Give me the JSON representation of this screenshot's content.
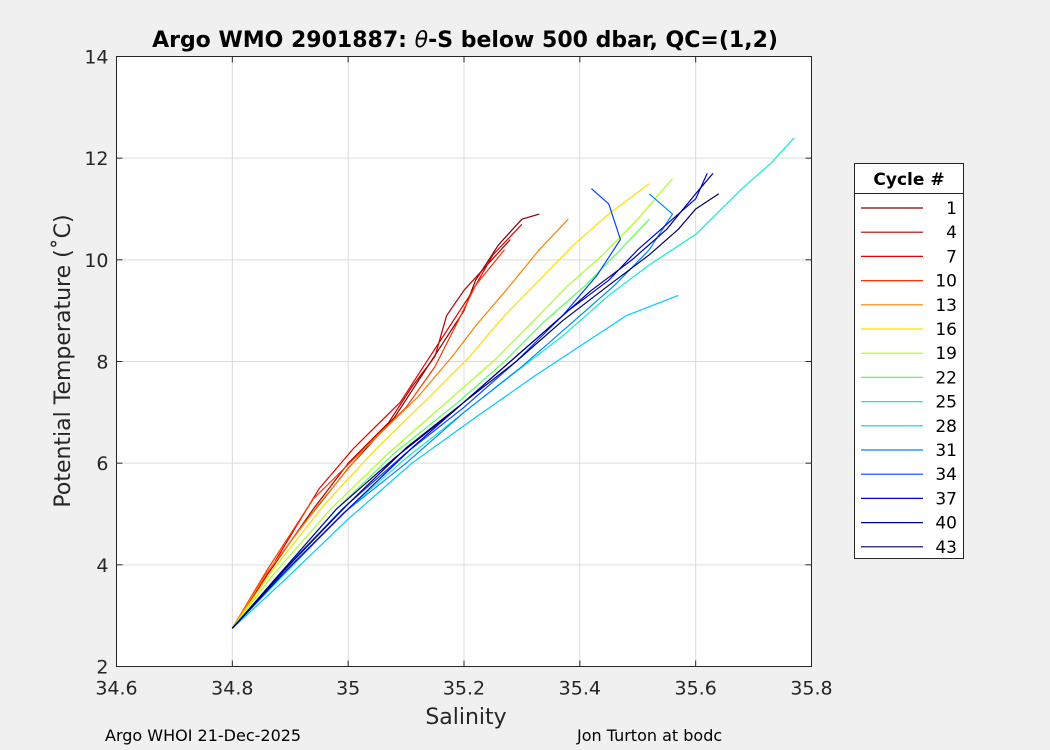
{
  "title_prefix": "Argo WMO 2901887: ",
  "title_theta": "θ",
  "title_suffix": "-S below 500 dbar,  QC=(1,2)",
  "footer_left": "Argo WHOI 21-Dec-2025",
  "footer_right": "Jon Turton at bodc",
  "chart_data": {
    "type": "line",
    "title": "Argo WMO 2901887: θ-S below 500 dbar,  QC=(1,2)",
    "xlabel": "Salinity",
    "ylabel": "Potential Temperature (˚C)",
    "xlim": [
      34.6,
      35.8
    ],
    "ylim": [
      2,
      14
    ],
    "xticks": [
      34.6,
      34.8,
      35,
      35.2,
      35.4,
      35.6,
      35.8
    ],
    "xtick_labels": [
      "34.6",
      "34.8",
      "35",
      "35.2",
      "35.4",
      "35.6",
      "35.8"
    ],
    "yticks": [
      2,
      4,
      6,
      8,
      10,
      12,
      14
    ],
    "ytick_labels": [
      "2",
      "4",
      "6",
      "8",
      "10",
      "12",
      "14"
    ],
    "grid": true,
    "legend_title": "Cycle #",
    "legend_position": "right",
    "legend": [
      {
        "label": "1",
        "color": "#800000"
      },
      {
        "label": "4",
        "color": "#b30000"
      },
      {
        "label": "7",
        "color": "#e60000"
      },
      {
        "label": "10",
        "color": "#ff3300"
      },
      {
        "label": "13",
        "color": "#ff8000"
      },
      {
        "label": "16",
        "color": "#ffdd00"
      },
      {
        "label": "19",
        "color": "#aaff22"
      },
      {
        "label": "22",
        "color": "#55ff55"
      },
      {
        "label": "25",
        "color": "#11eecc"
      },
      {
        "label": "28",
        "color": "#00ccff"
      },
      {
        "label": "31",
        "color": "#0088ff"
      },
      {
        "label": "34",
        "color": "#0044ff"
      },
      {
        "label": "37",
        "color": "#0000dd"
      },
      {
        "label": "40",
        "color": "#00008f"
      },
      {
        "label": "43",
        "color": "#000066"
      }
    ],
    "series": [
      {
        "name": "1",
        "color": "#800000",
        "points": [
          [
            34.8,
            2.75
          ],
          [
            34.85,
            3.7
          ],
          [
            34.93,
            4.9
          ],
          [
            35.0,
            5.9
          ],
          [
            35.08,
            6.9
          ],
          [
            35.12,
            7.6
          ],
          [
            35.16,
            8.3
          ],
          [
            35.2,
            9.0
          ],
          [
            35.22,
            9.6
          ],
          [
            35.26,
            10.3
          ],
          [
            35.3,
            10.8
          ],
          [
            35.33,
            10.9
          ]
        ]
      },
      {
        "name": "4",
        "color": "#b30000",
        "points": [
          [
            34.8,
            2.75
          ],
          [
            34.86,
            3.8
          ],
          [
            34.94,
            5.1
          ],
          [
            35.0,
            6.0
          ],
          [
            35.07,
            6.8
          ],
          [
            35.11,
            7.5
          ],
          [
            35.15,
            8.1
          ],
          [
            35.17,
            8.9
          ],
          [
            35.2,
            9.4
          ],
          [
            35.24,
            9.9
          ],
          [
            35.28,
            10.4
          ]
        ]
      },
      {
        "name": "7",
        "color": "#e60000",
        "points": [
          [
            34.8,
            2.75
          ],
          [
            34.87,
            4.0
          ],
          [
            34.95,
            5.5
          ],
          [
            35.01,
            6.3
          ],
          [
            35.09,
            7.2
          ],
          [
            35.13,
            7.9
          ],
          [
            35.17,
            8.6
          ],
          [
            35.21,
            9.3
          ],
          [
            35.25,
            10.1
          ],
          [
            35.3,
            10.7
          ]
        ]
      },
      {
        "name": "10",
        "color": "#ff3300",
        "points": [
          [
            34.8,
            2.75
          ],
          [
            34.86,
            3.9
          ],
          [
            34.94,
            5.3
          ],
          [
            35.02,
            6.2
          ],
          [
            35.1,
            7.1
          ],
          [
            35.15,
            7.9
          ],
          [
            35.19,
            8.8
          ],
          [
            35.22,
            9.5
          ],
          [
            35.27,
            10.2
          ]
        ]
      },
      {
        "name": "13",
        "color": "#ff8000",
        "points": [
          [
            34.8,
            2.75
          ],
          [
            34.86,
            3.85
          ],
          [
            34.95,
            5.2
          ],
          [
            35.03,
            6.3
          ],
          [
            35.12,
            7.3
          ],
          [
            35.18,
            8.1
          ],
          [
            35.22,
            8.7
          ],
          [
            35.28,
            9.5
          ],
          [
            35.33,
            10.2
          ],
          [
            35.38,
            10.8
          ]
        ]
      },
      {
        "name": "16",
        "color": "#ffdd00",
        "points": [
          [
            34.8,
            2.75
          ],
          [
            34.87,
            3.9
          ],
          [
            34.96,
            5.2
          ],
          [
            35.05,
            6.3
          ],
          [
            35.14,
            7.3
          ],
          [
            35.21,
            8.1
          ],
          [
            35.27,
            8.9
          ],
          [
            35.33,
            9.6
          ],
          [
            35.39,
            10.3
          ],
          [
            35.45,
            10.9
          ],
          [
            35.52,
            11.5
          ]
        ]
      },
      {
        "name": "19",
        "color": "#aaff22",
        "points": [
          [
            34.8,
            2.75
          ],
          [
            34.87,
            3.8
          ],
          [
            34.97,
            5.1
          ],
          [
            35.07,
            6.2
          ],
          [
            35.17,
            7.2
          ],
          [
            35.25,
            8.0
          ],
          [
            35.32,
            8.8
          ],
          [
            35.38,
            9.5
          ],
          [
            35.44,
            10.1
          ],
          [
            35.5,
            10.8
          ],
          [
            35.56,
            11.6
          ]
        ]
      },
      {
        "name": "22",
        "color": "#55ff55",
        "points": [
          [
            34.8,
            2.75
          ],
          [
            34.88,
            3.8
          ],
          [
            34.98,
            5.1
          ],
          [
            35.08,
            6.2
          ],
          [
            35.19,
            7.2
          ],
          [
            35.27,
            8.0
          ],
          [
            35.34,
            8.8
          ],
          [
            35.41,
            9.5
          ],
          [
            35.47,
            10.2
          ],
          [
            35.52,
            10.8
          ]
        ]
      },
      {
        "name": "25",
        "color": "#11eecc",
        "points": [
          [
            34.8,
            2.75
          ],
          [
            34.88,
            3.7
          ],
          [
            34.99,
            5.0
          ],
          [
            35.1,
            6.1
          ],
          [
            35.2,
            7.0
          ],
          [
            35.29,
            7.8
          ],
          [
            35.37,
            8.5
          ],
          [
            35.45,
            9.3
          ],
          [
            35.52,
            9.9
          ],
          [
            35.6,
            10.5
          ],
          [
            35.68,
            11.4
          ],
          [
            35.73,
            11.9
          ],
          [
            35.77,
            12.4
          ]
        ]
      },
      {
        "name": "28",
        "color": "#00ccff",
        "points": [
          [
            34.8,
            2.75
          ],
          [
            34.89,
            3.7
          ],
          [
            35.0,
            4.9
          ],
          [
            35.11,
            6.0
          ],
          [
            35.22,
            6.9
          ],
          [
            35.32,
            7.7
          ],
          [
            35.4,
            8.3
          ],
          [
            35.48,
            8.9
          ],
          [
            35.57,
            9.3
          ]
        ]
      },
      {
        "name": "31",
        "color": "#0088ff",
        "points": [
          [
            34.8,
            2.75
          ],
          [
            34.88,
            3.75
          ],
          [
            34.99,
            5.0
          ],
          [
            35.1,
            6.0
          ],
          [
            35.2,
            7.0
          ],
          [
            35.3,
            7.9
          ],
          [
            35.38,
            8.7
          ],
          [
            35.46,
            9.5
          ],
          [
            35.52,
            10.2
          ],
          [
            35.56,
            10.9
          ],
          [
            35.52,
            11.3
          ]
        ]
      },
      {
        "name": "34",
        "color": "#0044ff",
        "points": [
          [
            34.8,
            2.75
          ],
          [
            34.88,
            3.8
          ],
          [
            34.99,
            5.1
          ],
          [
            35.1,
            6.2
          ],
          [
            35.2,
            7.1
          ],
          [
            35.29,
            8.0
          ],
          [
            35.37,
            8.9
          ],
          [
            35.43,
            9.7
          ],
          [
            35.47,
            10.4
          ],
          [
            35.45,
            11.1
          ],
          [
            35.42,
            11.4
          ]
        ]
      },
      {
        "name": "37",
        "color": "#0000dd",
        "points": [
          [
            34.8,
            2.75
          ],
          [
            34.89,
            3.85
          ],
          [
            35.0,
            5.1
          ],
          [
            35.11,
            6.3
          ],
          [
            35.21,
            7.3
          ],
          [
            35.3,
            8.2
          ],
          [
            35.38,
            9.0
          ],
          [
            35.45,
            9.6
          ],
          [
            35.5,
            10.2
          ],
          [
            35.55,
            10.7
          ],
          [
            35.6,
            11.2
          ],
          [
            35.62,
            11.7
          ]
        ]
      },
      {
        "name": "40",
        "color": "#00008f",
        "points": [
          [
            34.8,
            2.75
          ],
          [
            34.88,
            3.8
          ],
          [
            34.98,
            5.1
          ],
          [
            35.08,
            6.1
          ],
          [
            35.18,
            7.0
          ],
          [
            35.27,
            7.9
          ],
          [
            35.35,
            8.7
          ],
          [
            35.42,
            9.4
          ],
          [
            35.49,
            10.0
          ],
          [
            35.55,
            10.6
          ],
          [
            35.6,
            11.3
          ],
          [
            35.63,
            11.7
          ]
        ]
      },
      {
        "name": "43",
        "color": "#000066",
        "points": [
          [
            34.8,
            2.75
          ],
          [
            34.89,
            3.9
          ],
          [
            35.0,
            5.2
          ],
          [
            35.1,
            6.3
          ],
          [
            35.2,
            7.2
          ],
          [
            35.29,
            8.0
          ],
          [
            35.37,
            8.8
          ],
          [
            35.45,
            9.5
          ],
          [
            35.52,
            10.1
          ],
          [
            35.57,
            10.6
          ],
          [
            35.6,
            11.0
          ],
          [
            35.64,
            11.3
          ]
        ]
      }
    ]
  }
}
